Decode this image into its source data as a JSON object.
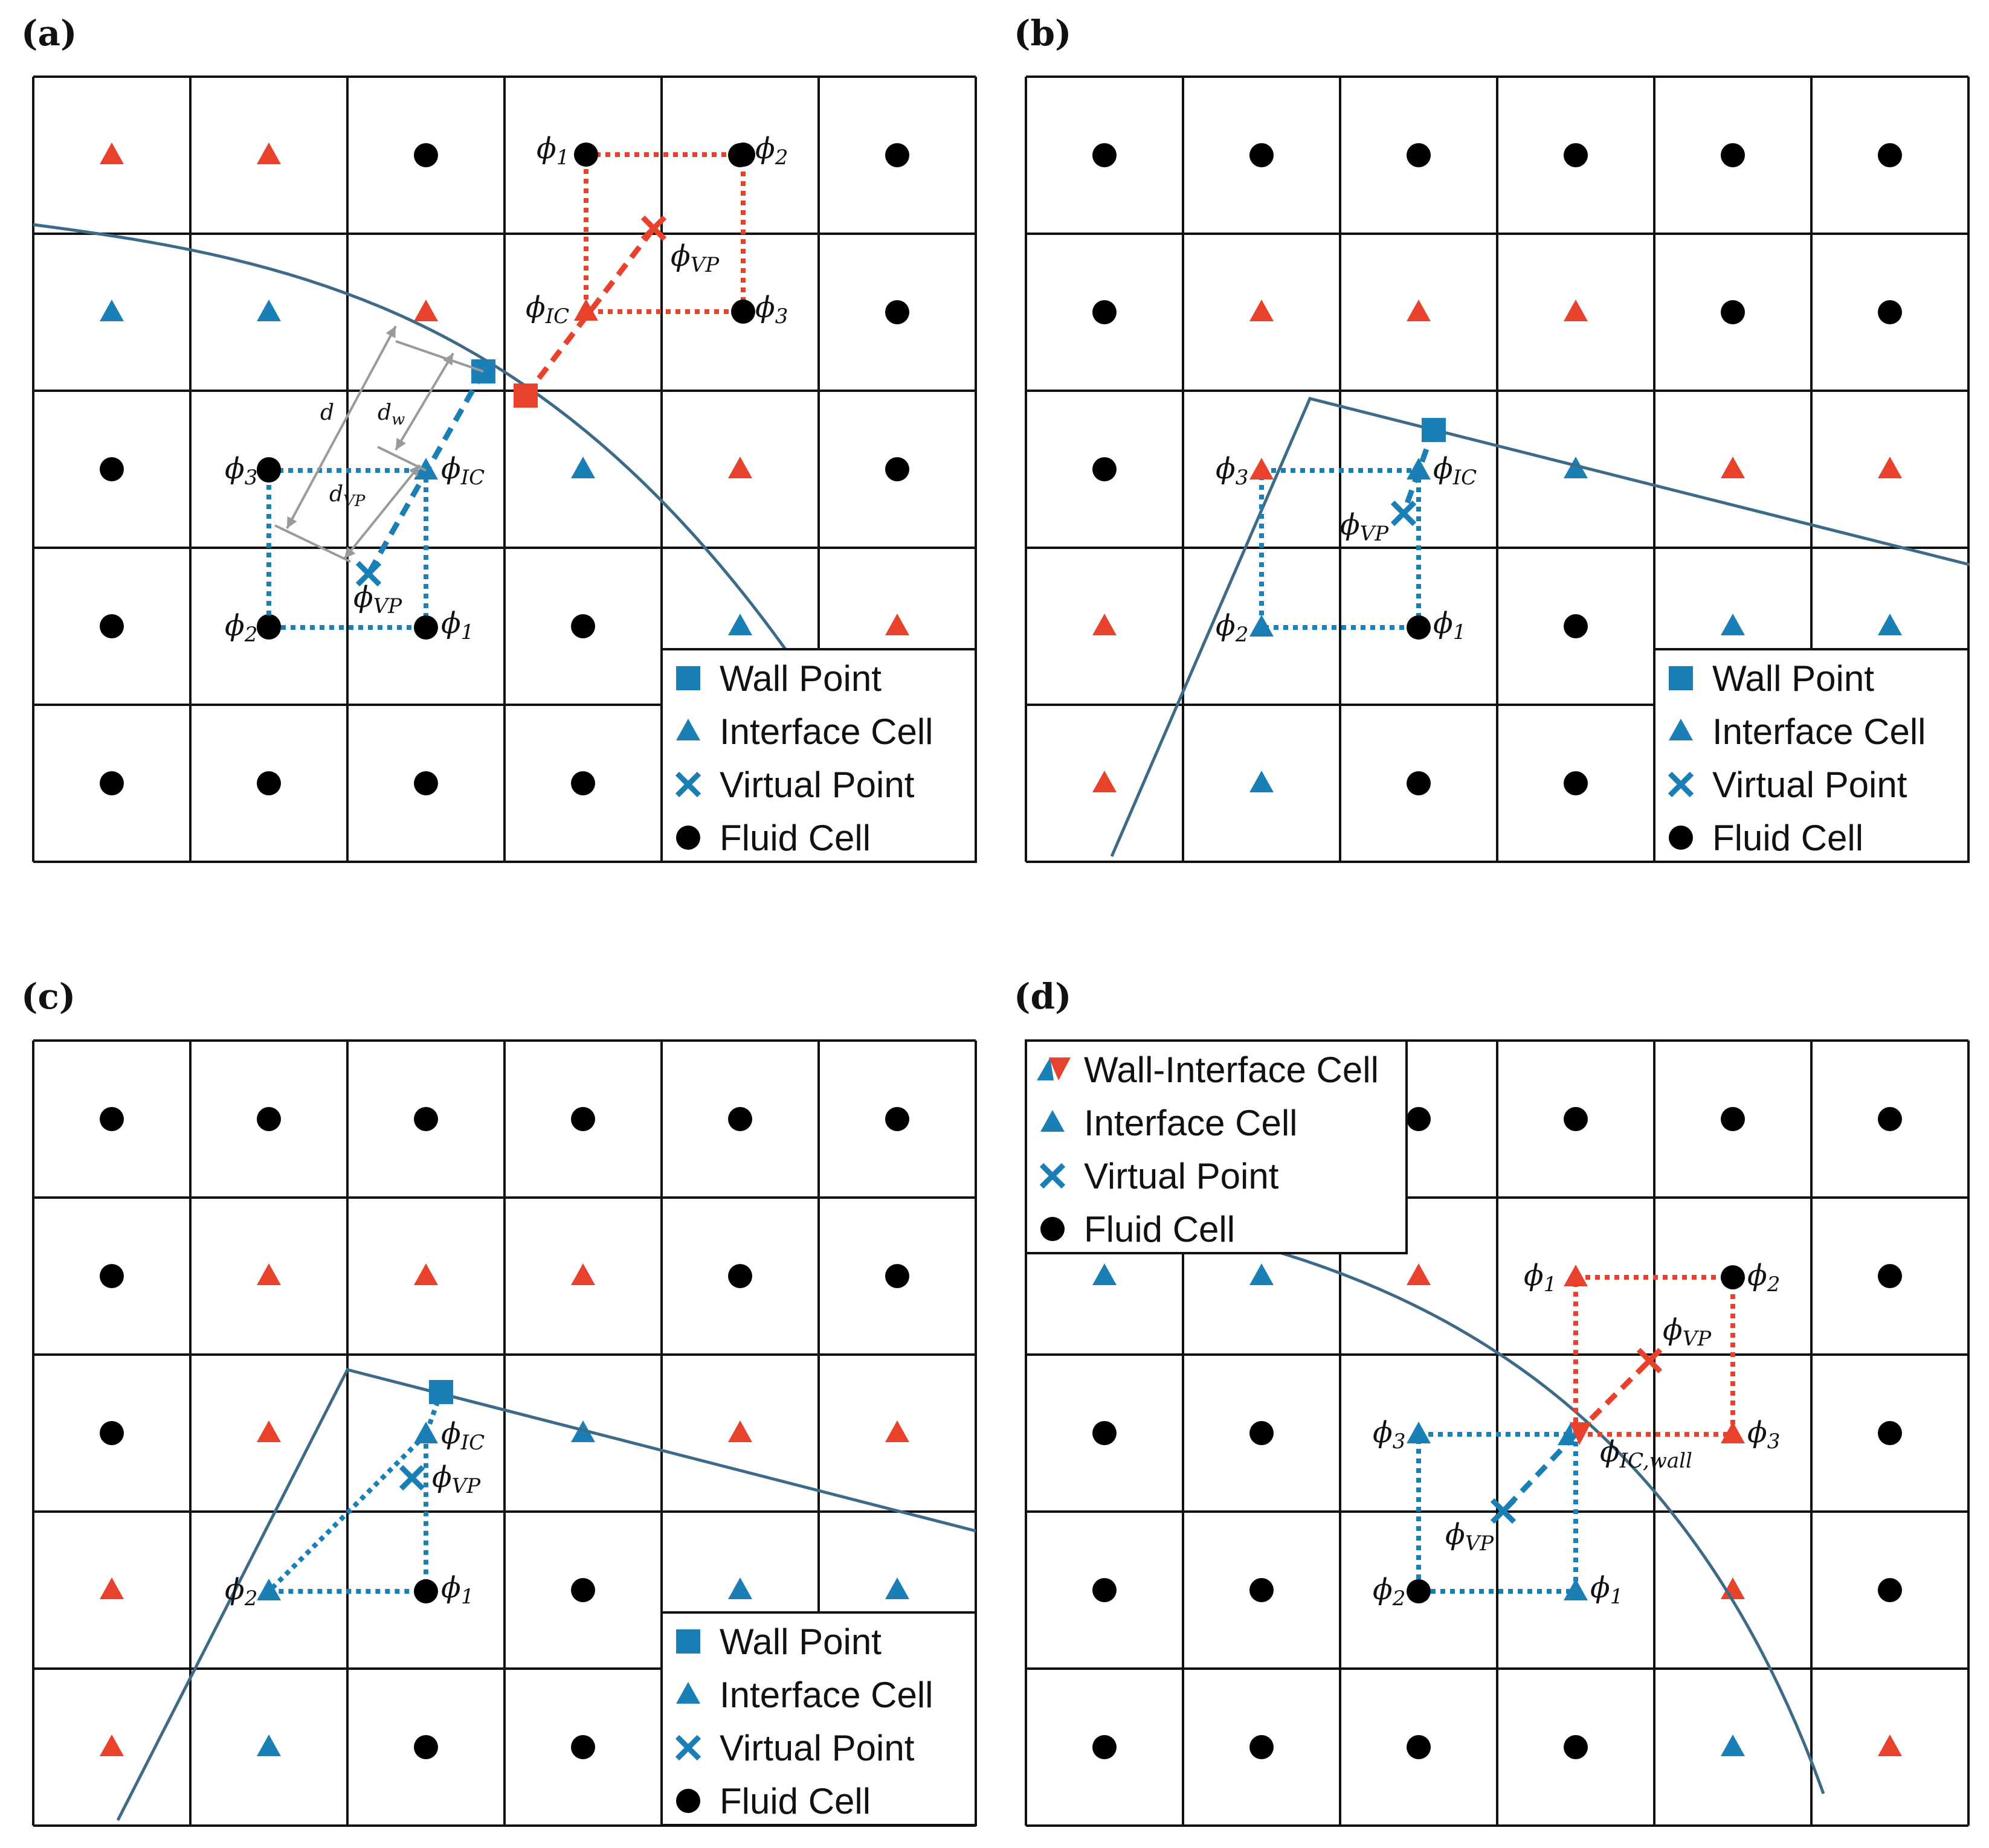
{
  "colors": {
    "red": "#e8412c",
    "blue": "#1a7fb5",
    "black": "#000000",
    "curve": "#3d6a87",
    "dim": "#9a9a9a",
    "grid": "#111111"
  },
  "panels": {
    "a": {
      "label": "(a)",
      "legend": [
        "Wall Point",
        "Interface Cell",
        "Virtual Point",
        "Fluid Cell"
      ]
    },
    "b": {
      "label": "(b)",
      "legend": [
        "Wall Point",
        "Interface Cell",
        "Virtual Point",
        "Fluid Cell"
      ]
    },
    "c": {
      "label": "(c)",
      "legend": [
        "Wall Point",
        "Interface Cell",
        "Virtual Point",
        "Fluid Cell"
      ]
    },
    "d": {
      "label": "(d)",
      "legend": [
        "Wall-Interface Cell",
        "Interface Cell",
        "Virtual Point",
        "Fluid Cell"
      ]
    }
  },
  "symbols": {
    "phi": "ϕ",
    "sub_1": "1",
    "sub_2": "2",
    "sub_3": "3",
    "sub_ic": "IC",
    "sub_vp": "VP",
    "sub_icwall": "IC,wall"
  },
  "dims": {
    "d": "d",
    "dw": "d",
    "dw_sub": "w",
    "dvp": "d",
    "dvp_sub": "VP"
  },
  "icons": {
    "wall": "square-marker",
    "interface": "triangle-marker",
    "virtual": "x-marker",
    "fluid": "circle-marker",
    "wall_interface": "split-triangle-marker"
  }
}
